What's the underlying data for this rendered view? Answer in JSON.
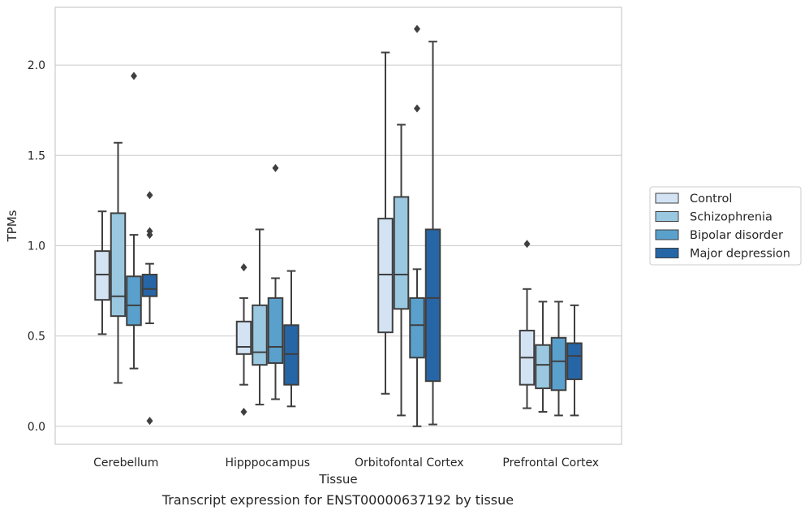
{
  "caption": "Transcript expression for ENST00000637192 by tissue",
  "chart_data": {
    "type": "box",
    "xlabel": "Tissue",
    "ylabel": "TPMs",
    "ylim": [
      -0.1,
      2.32
    ],
    "yticks": [
      0.0,
      0.5,
      1.0,
      1.5,
      2.0
    ],
    "ytick_labels": [
      "0.0",
      "0.5",
      "1.0",
      "1.5",
      "2.0"
    ],
    "grid": "horizontal",
    "legend_position": "right",
    "categories": [
      "Cerebellum",
      "Hipppocampus",
      "Orbitofontal Cortex",
      "Prefrontal Cortex"
    ],
    "series": [
      {
        "name": "Control",
        "color": "#d3e3f3",
        "boxes": [
          {
            "whislo": 0.51,
            "q1": 0.7,
            "med": 0.84,
            "q3": 0.97,
            "whishi": 1.19,
            "fliers": []
          },
          {
            "whislo": 0.23,
            "q1": 0.4,
            "med": 0.44,
            "q3": 0.58,
            "whishi": 0.71,
            "fliers": [
              0.08,
              0.88
            ]
          },
          {
            "whislo": 0.18,
            "q1": 0.52,
            "med": 0.84,
            "q3": 1.15,
            "whishi": 2.07,
            "fliers": []
          },
          {
            "whislo": 0.1,
            "q1": 0.23,
            "med": 0.38,
            "q3": 0.53,
            "whishi": 0.76,
            "fliers": [
              1.01
            ]
          }
        ]
      },
      {
        "name": "Schizophrenia",
        "color": "#9ac8e0",
        "boxes": [
          {
            "whislo": 0.24,
            "q1": 0.61,
            "med": 0.72,
            "q3": 1.18,
            "whishi": 1.57,
            "fliers": []
          },
          {
            "whislo": 0.12,
            "q1": 0.34,
            "med": 0.41,
            "q3": 0.67,
            "whishi": 1.09,
            "fliers": []
          },
          {
            "whislo": 0.06,
            "q1": 0.65,
            "med": 0.84,
            "q3": 1.27,
            "whishi": 1.67,
            "fliers": []
          },
          {
            "whislo": 0.08,
            "q1": 0.21,
            "med": 0.34,
            "q3": 0.45,
            "whishi": 0.69,
            "fliers": []
          }
        ]
      },
      {
        "name": "Bipolar disorder",
        "color": "#5aa0cd",
        "boxes": [
          {
            "whislo": 0.32,
            "q1": 0.56,
            "med": 0.67,
            "q3": 0.83,
            "whishi": 1.06,
            "fliers": [
              1.94
            ]
          },
          {
            "whislo": 0.15,
            "q1": 0.35,
            "med": 0.44,
            "q3": 0.71,
            "whishi": 0.82,
            "fliers": [
              1.43
            ]
          },
          {
            "whislo": 0.0,
            "q1": 0.38,
            "med": 0.56,
            "q3": 0.71,
            "whishi": 0.87,
            "fliers": [
              1.76,
              2.2
            ]
          },
          {
            "whislo": 0.06,
            "q1": 0.2,
            "med": 0.36,
            "q3": 0.49,
            "whishi": 0.69,
            "fliers": []
          }
        ]
      },
      {
        "name": "Major depression",
        "color": "#2666a7",
        "boxes": [
          {
            "whislo": 0.57,
            "q1": 0.72,
            "med": 0.76,
            "q3": 0.84,
            "whishi": 0.9,
            "fliers": [
              0.03,
              1.06,
              1.08,
              1.28
            ]
          },
          {
            "whislo": 0.11,
            "q1": 0.23,
            "med": 0.4,
            "q3": 0.56,
            "whishi": 0.86,
            "fliers": []
          },
          {
            "whislo": 0.01,
            "q1": 0.25,
            "med": 0.71,
            "q3": 1.09,
            "whishi": 2.13,
            "fliers": []
          },
          {
            "whislo": 0.06,
            "q1": 0.26,
            "med": 0.39,
            "q3": 0.46,
            "whishi": 0.67,
            "fliers": []
          }
        ]
      }
    ]
  }
}
